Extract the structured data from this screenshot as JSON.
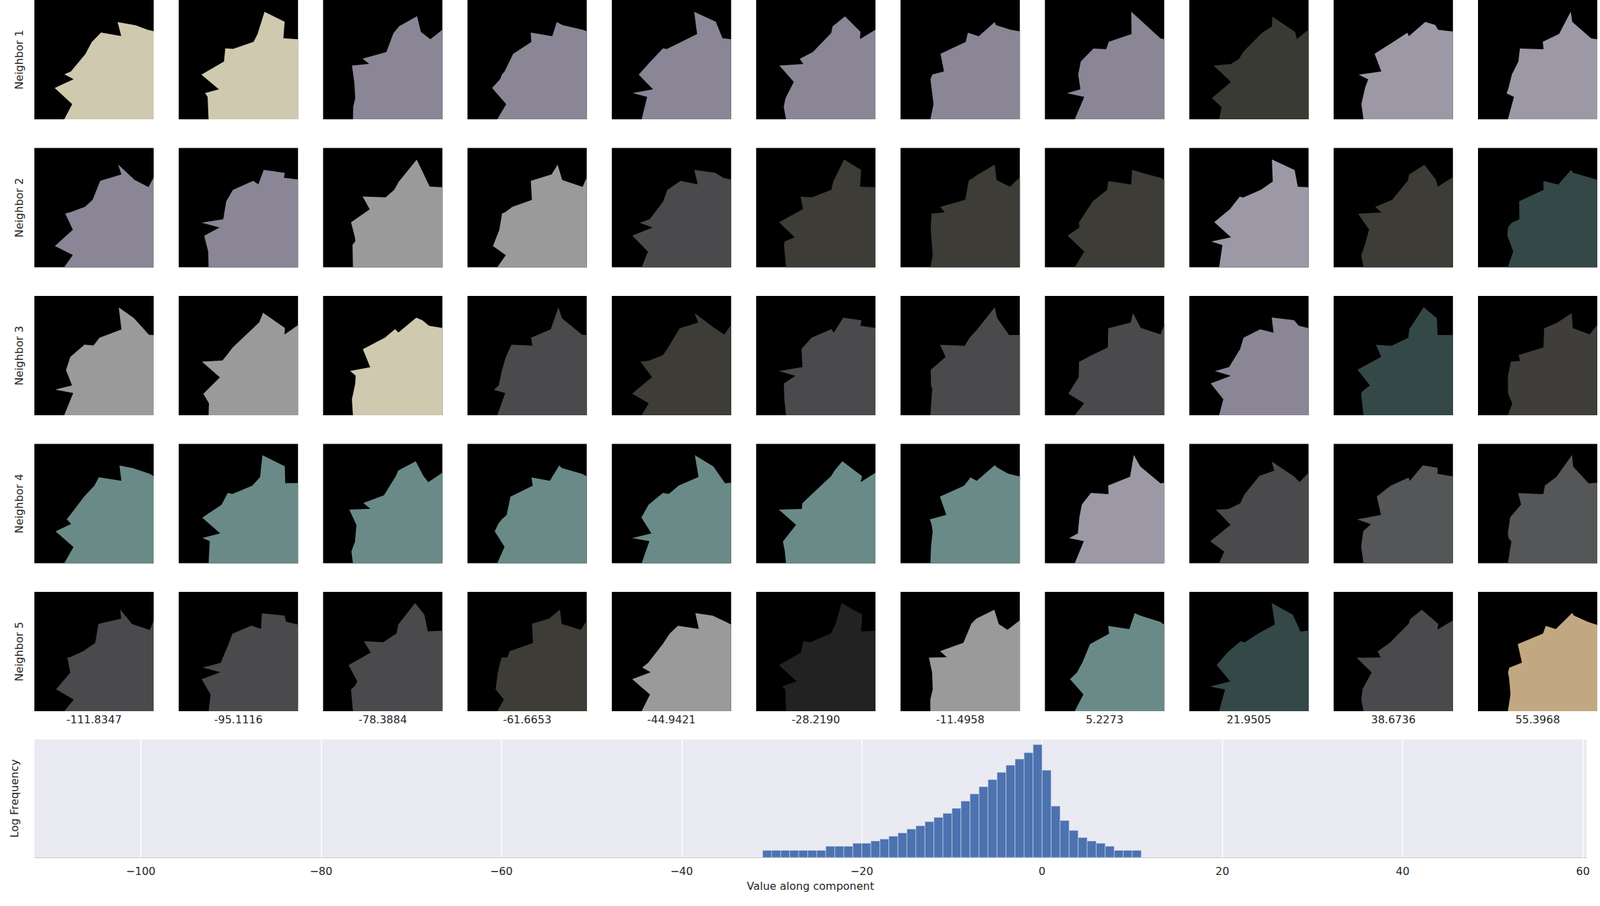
{
  "chart_data": [
    {
      "type": "image_grid",
      "row_labels": [
        "Neighbor 1",
        "Neighbor 2",
        "Neighbor 3",
        "Neighbor 4",
        "Neighbor 5"
      ],
      "column_labels": [
        -111.8347,
        -95.1116,
        -78.3884,
        -61.6653,
        -44.9421,
        {
          "value": -28.219,
          "label": "-28.2190"
        },
        -11.4958,
        5.2273,
        21.9505,
        38.6736,
        55.3968
      ],
      "colors": [
        [
          "#cfc9b0",
          "#cfc9b0",
          "#8a8696",
          "#8a8696",
          "#8a8696",
          "#8a8696",
          "#8a8696",
          "#8a8696",
          "#3a3a34",
          "#9c98a6",
          "#9c98a6"
        ],
        [
          "#8a8696",
          "#8a8696",
          "#9a9a9a",
          "#9a9a9a",
          "#4a4a4c",
          "#3d3c36",
          "#3d3c36",
          "#3d3c36",
          "#9c98a6",
          "#3d3c36",
          "#344848"
        ],
        [
          "#9a9a9a",
          "#9a9a9a",
          "#cfc9b0",
          "#4a4a4c",
          "#3d3c36",
          "#4a4a4c",
          "#4a4a4c",
          "#4a4a4c",
          "#8a8696",
          "#344848",
          "#3f3e3a"
        ],
        [
          "#6a8a88",
          "#6a8a88",
          "#6a8a88",
          "#6a8a88",
          "#6a8a88",
          "#6a8a88",
          "#6a8a88",
          "#9c98a6",
          "#4a4a4c",
          "#555658",
          "#555658"
        ],
        [
          "#4a4a4c",
          "#4a4a4c",
          "#4a4a4c",
          "#3d3c36",
          "#9a9a9a",
          "#222222",
          "#9a9a9a",
          "#6a8a88",
          "#344848",
          "#4a4a4c",
          "#c2a882"
        ]
      ]
    },
    {
      "type": "histogram",
      "xlabel": "Value along component",
      "ylabel": "Log Frequency",
      "bins": [
        -36,
        -35,
        -34,
        -33,
        -32,
        -31,
        -30,
        -29,
        -28,
        -27,
        -26,
        -25,
        -24,
        -23,
        -22,
        -21,
        -20,
        -19,
        -18,
        -17,
        -16,
        -15,
        -14,
        -13,
        -12,
        -11,
        -10,
        -9,
        -8,
        -7,
        -6,
        -5,
        -4,
        -3,
        -2,
        -1,
        0,
        1,
        2,
        3,
        4,
        5,
        6,
        7,
        8,
        9,
        10,
        11,
        12,
        13,
        14,
        15
      ],
      "counts": [
        1,
        1,
        1,
        1,
        1,
        2,
        2,
        2,
        2,
        2,
        2,
        2,
        3,
        3,
        3,
        4,
        4,
        5,
        6,
        8,
        11,
        16,
        22,
        33,
        50,
        74,
        121,
        246,
        497,
        1000,
        2010,
        4050,
        8160,
        14900,
        27500,
        60600,
        5000,
        150,
        37,
        14,
        7,
        5,
        4,
        3,
        2,
        2,
        2,
        1,
        1,
        1,
        1
      ],
      "color": "#4c72b0",
      "xlim": [
        -111.8,
        60.4
      ],
      "xticks": [
        {
          "value": -100,
          "label": "−100"
        },
        {
          "value": -80,
          "label": "−80"
        },
        {
          "value": -60,
          "label": "−60"
        },
        {
          "value": -40,
          "label": "−40"
        },
        {
          "value": -20,
          "label": "−20"
        },
        0,
        20,
        40,
        60
      ],
      "ylim": [
        1,
        100000
      ],
      "log": "y",
      "grid": true,
      "tick_labels": "x"
    }
  ]
}
